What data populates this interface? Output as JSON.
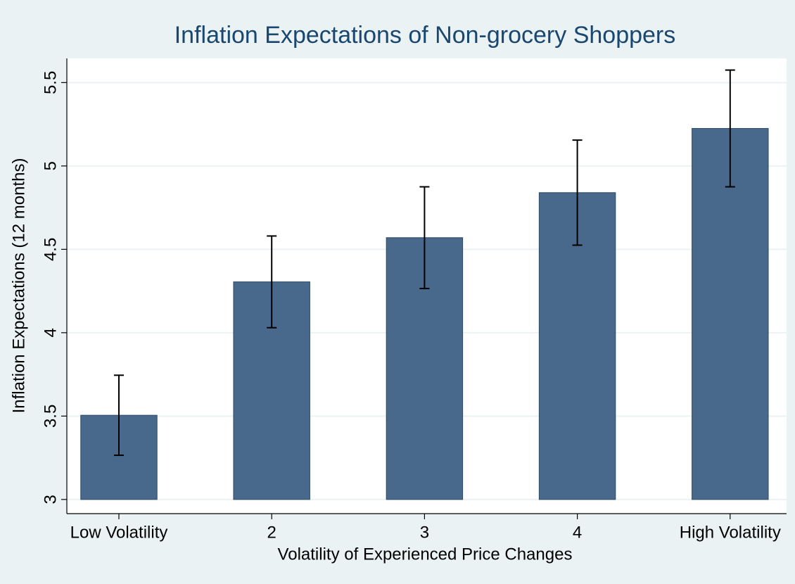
{
  "chart_data": {
    "type": "bar",
    "title": "Inflation Expectations of Non-grocery Shoppers",
    "x_label": "Volatility of Experienced Price Changes",
    "y_label": "Inflation Expectations (12 months)",
    "categories": [
      "Low Volatility",
      "2",
      "3",
      "4",
      "High Volatility"
    ],
    "values": [
      3.505,
      4.305,
      4.57,
      4.84,
      5.225
    ],
    "errors": [
      0.24,
      0.275,
      0.305,
      0.315,
      0.35
    ],
    "color": "#48698c",
    "ylim": [
      2.915,
      5.645
    ],
    "yticks": [
      3,
      3.5,
      4,
      4.5,
      5,
      5.5
    ],
    "grid": true
  }
}
